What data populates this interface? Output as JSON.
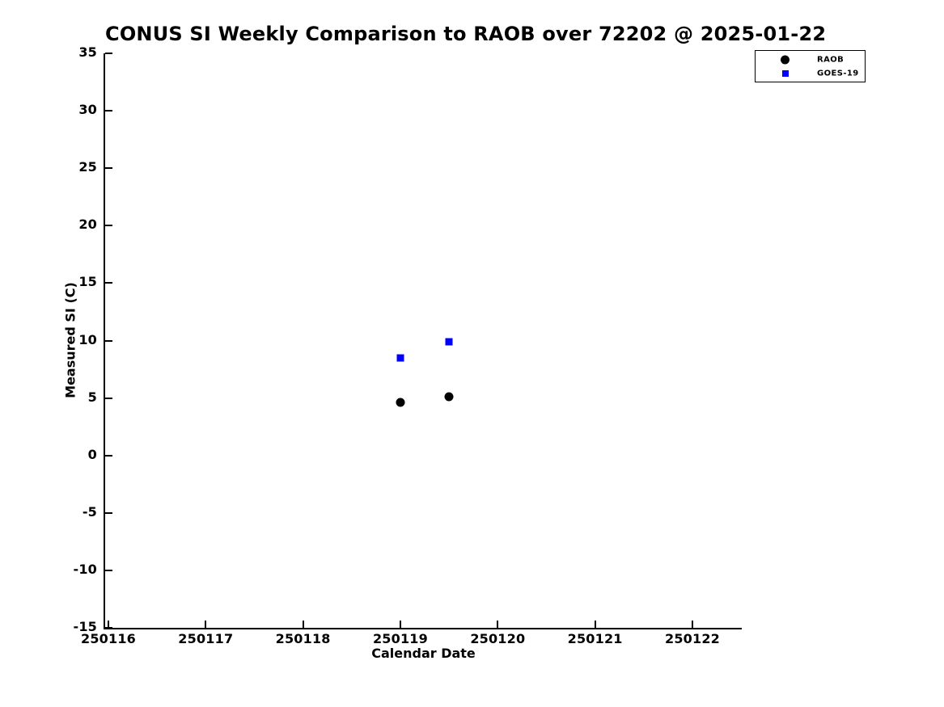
{
  "figure": {
    "title": "CONUS SI Weekly Comparison to RAOB over 72202 @ 2025-01-22"
  },
  "axes": {
    "xlabel": "Calendar Date",
    "ylabel": "Measured SI (C)"
  },
  "legend": {
    "items": [
      {
        "label": "RAOB",
        "marker": "circle",
        "color": "#000000"
      },
      {
        "label": "GOES-19",
        "marker": "square",
        "color": "#0000ff"
      }
    ]
  },
  "colors": {
    "raob": "#000000",
    "goes19": "#0000ff",
    "axis": "#000000",
    "background": "#ffffff"
  },
  "chart_data": {
    "type": "scatter",
    "title": "CONUS SI Weekly Comparison to RAOB over 72202 @ 2025-01-22",
    "xlabel": "Calendar Date",
    "ylabel": "Measured SI (C)",
    "xlim": [
      250115.967,
      250122.507
    ],
    "ylim": [
      -15,
      35
    ],
    "grid": false,
    "legend_position": "upper-right outside axes",
    "xticks": [
      "250116",
      "250117",
      "250118",
      "250119",
      "250120",
      "250121",
      "250122"
    ],
    "yticks": [
      "35",
      "30",
      "25",
      "20",
      "15",
      "10",
      "5",
      "0",
      "-5",
      "-10",
      "-15"
    ],
    "series": [
      {
        "name": "RAOB",
        "marker": "circle",
        "color": "#000000",
        "x": [
          250119.0,
          250119.5
        ],
        "y": [
          4.6,
          5.1
        ]
      },
      {
        "name": "GOES-19",
        "marker": "square",
        "color": "#0000ff",
        "x": [
          250119.0,
          250119.5
        ],
        "y": [
          8.5,
          9.9
        ]
      }
    ]
  }
}
